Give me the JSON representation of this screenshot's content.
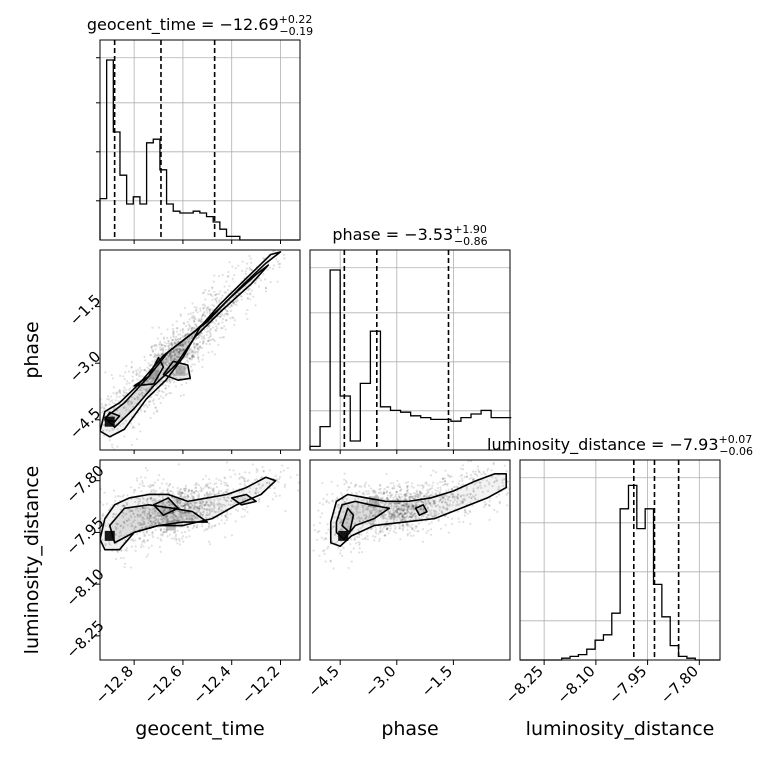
{
  "chart_data": {
    "type": "corner",
    "parameters": [
      {
        "name": "geocent_time",
        "axis_label": "geocent_time",
        "range": [
          -12.94,
          -12.12
        ],
        "ticks": [
          -12.8,
          -12.6,
          -12.4,
          -12.2
        ],
        "tick_labels": [
          "−12.8",
          "−12.6",
          "−12.4",
          "−12.2"
        ],
        "title": {
          "prefix": "geocent_time = −12.69",
          "plus": "+0.22",
          "minus": "−0.19"
        },
        "quantiles": [
          -12.88,
          -12.69,
          -12.47
        ],
        "histogram_bin_edges_start": -12.94,
        "histogram_bin_width": 0.0273,
        "histogram_counts": [
          0.23,
          1.0,
          0.6,
          0.36,
          0.2,
          0.24,
          0.2,
          0.54,
          0.56,
          0.39,
          0.2,
          0.16,
          0.15,
          0.15,
          0.16,
          0.15,
          0.13,
          0.1,
          0.06,
          0.02,
          0.02,
          0.0,
          0.0,
          0.0,
          0.0,
          0.0,
          0.0,
          0.0,
          0.0,
          0.0
        ]
      },
      {
        "name": "phase",
        "axis_label": "phase",
        "range": [
          -5.3,
          0.0
        ],
        "ticks": [
          -4.5,
          -3.0,
          -1.5
        ],
        "tick_labels": [
          "−4.5",
          "−3.0",
          "−1.5"
        ],
        "title": {
          "prefix": "phase = −3.53",
          "plus": "+1.90",
          "minus": "−0.86"
        },
        "quantiles": [
          -4.39,
          -3.53,
          -1.63
        ],
        "histogram_bin_edges_start": -5.3,
        "histogram_bin_width": 0.2667,
        "histogram_counts": [
          0.02,
          0.13,
          1.0,
          0.3,
          0.05,
          0.37,
          0.66,
          0.24,
          0.22,
          0.21,
          0.19,
          0.18,
          0.17,
          0.17,
          0.16,
          0.18,
          0.2,
          0.22,
          0.18,
          0.18
        ]
      },
      {
        "name": "luminosity_distance",
        "axis_label": "luminosity_distance",
        "range": [
          -8.32,
          -7.74
        ],
        "ticks": [
          -8.25,
          -8.1,
          -7.95,
          -7.8
        ],
        "tick_labels": [
          "−8.25",
          "−8.10",
          "−7.95",
          "−7.80"
        ],
        "title": {
          "prefix": "luminosity_distance = −7.93",
          "plus": "+0.07",
          "minus": "−0.06"
        },
        "quantiles": [
          -7.99,
          -7.93,
          -7.86
        ],
        "histogram_bin_edges_start": -8.32,
        "histogram_bin_width": 0.0242,
        "histogram_counts": [
          0.0,
          0.0,
          0.0,
          0.0,
          0.0,
          0.01,
          0.02,
          0.03,
          0.06,
          0.11,
          0.14,
          0.26,
          0.84,
          0.97,
          0.73,
          0.84,
          0.42,
          0.24,
          0.08,
          0.02,
          0.01,
          0.0,
          0.0,
          0.0
        ]
      }
    ],
    "pairs": [
      {
        "x": "geocent_time",
        "y": "phase",
        "contours": [
          [
            [
              -12.92,
              -4.28
            ],
            [
              -12.86,
              -4.05
            ],
            [
              -12.78,
              -3.55
            ],
            [
              -12.68,
              -2.8
            ],
            [
              -12.55,
              -2.15
            ],
            [
              -12.45,
              -1.55
            ],
            [
              -12.35,
              -0.9
            ],
            [
              -12.26,
              -0.35
            ],
            [
              -12.2,
              -0.05
            ],
            [
              -12.24,
              -0.12
            ],
            [
              -12.34,
              -0.75
            ],
            [
              -12.45,
              -1.45
            ],
            [
              -12.53,
              -2.05
            ],
            [
              -12.6,
              -2.85
            ],
            [
              -12.67,
              -3.45
            ],
            [
              -12.75,
              -3.95
            ],
            [
              -12.84,
              -4.75
            ],
            [
              -12.9,
              -4.95
            ],
            [
              -12.94,
              -4.8
            ],
            [
              -12.92,
              -4.28
            ]
          ],
          [
            [
              -12.92,
              -4.45
            ],
            [
              -12.84,
              -4.05
            ],
            [
              -12.74,
              -3.35
            ],
            [
              -12.66,
              -2.7
            ],
            [
              -12.58,
              -2.3
            ],
            [
              -12.5,
              -1.9
            ],
            [
              -12.42,
              -1.35
            ],
            [
              -12.3,
              -0.65
            ],
            [
              -12.25,
              -0.4
            ],
            [
              -12.32,
              -0.9
            ],
            [
              -12.44,
              -1.6
            ],
            [
              -12.55,
              -2.3
            ],
            [
              -12.63,
              -3.05
            ],
            [
              -12.72,
              -3.6
            ],
            [
              -12.8,
              -4.2
            ],
            [
              -12.88,
              -4.7
            ],
            [
              -12.92,
              -4.45
            ]
          ],
          [
            [
              -12.8,
              -3.6
            ],
            [
              -12.74,
              -3.35
            ],
            [
              -12.7,
              -2.85
            ],
            [
              -12.68,
              -3.1
            ],
            [
              -12.72,
              -3.55
            ],
            [
              -12.8,
              -3.6
            ]
          ],
          [
            [
              -12.68,
              -3.3
            ],
            [
              -12.62,
              -3.45
            ],
            [
              -12.57,
              -3.4
            ],
            [
              -12.58,
              -3.05
            ],
            [
              -12.64,
              -2.95
            ],
            [
              -12.68,
              -3.3
            ]
          ],
          [
            [
              -12.92,
              -4.5
            ],
            [
              -12.88,
              -4.55
            ],
            [
              -12.86,
              -4.4
            ],
            [
              -12.9,
              -4.3
            ],
            [
              -12.92,
              -4.5
            ]
          ]
        ],
        "density_peaks": [
          [
            -12.9,
            -4.55
          ],
          [
            -12.61,
            -3.2
          ],
          [
            -12.72,
            -3.3
          ]
        ]
      },
      {
        "x": "geocent_time",
        "y": "luminosity_distance",
        "contours": [
          [
            [
              -12.92,
              -7.91
            ],
            [
              -12.88,
              -7.87
            ],
            [
              -12.82,
              -7.85
            ],
            [
              -12.74,
              -7.84
            ],
            [
              -12.66,
              -7.84
            ],
            [
              -12.58,
              -7.86
            ],
            [
              -12.5,
              -7.85
            ],
            [
              -12.42,
              -7.84
            ],
            [
              -12.34,
              -7.82
            ],
            [
              -12.26,
              -7.79
            ],
            [
              -12.22,
              -7.8
            ],
            [
              -12.28,
              -7.84
            ],
            [
              -12.38,
              -7.87
            ],
            [
              -12.48,
              -7.91
            ],
            [
              -12.6,
              -7.93
            ],
            [
              -12.7,
              -7.93
            ],
            [
              -12.8,
              -7.95
            ],
            [
              -12.86,
              -8.0
            ],
            [
              -12.92,
              -8.0
            ],
            [
              -12.94,
              -7.97
            ],
            [
              -12.92,
              -7.91
            ]
          ],
          [
            [
              -12.9,
              -7.93
            ],
            [
              -12.84,
              -7.88
            ],
            [
              -12.74,
              -7.87
            ],
            [
              -12.64,
              -7.88
            ],
            [
              -12.56,
              -7.89
            ],
            [
              -12.5,
              -7.92
            ],
            [
              -12.6,
              -7.92
            ],
            [
              -12.7,
              -7.93
            ],
            [
              -12.8,
              -7.95
            ],
            [
              -12.88,
              -7.98
            ],
            [
              -12.9,
              -7.93
            ]
          ],
          [
            [
              -12.72,
              -7.87
            ],
            [
              -12.66,
              -7.85
            ],
            [
              -12.62,
              -7.88
            ],
            [
              -12.68,
              -7.9
            ],
            [
              -12.72,
              -7.87
            ]
          ],
          [
            [
              -12.4,
              -7.85
            ],
            [
              -12.34,
              -7.84
            ],
            [
              -12.3,
              -7.86
            ],
            [
              -12.36,
              -7.87
            ],
            [
              -12.4,
              -7.85
            ]
          ]
        ],
        "density_peaks": [
          [
            -12.9,
            -7.96
          ],
          [
            -12.65,
            -7.93
          ]
        ]
      },
      {
        "x": "phase",
        "y": "luminosity_distance",
        "contours": [
          [
            [
              -4.75,
              -7.92
            ],
            [
              -4.6,
              -7.86
            ],
            [
              -4.3,
              -7.84
            ],
            [
              -3.8,
              -7.85
            ],
            [
              -3.3,
              -7.86
            ],
            [
              -2.7,
              -7.86
            ],
            [
              -2.1,
              -7.85
            ],
            [
              -1.5,
              -7.83
            ],
            [
              -0.9,
              -7.8
            ],
            [
              -0.4,
              -7.78
            ],
            [
              -0.1,
              -7.78
            ],
            [
              -0.1,
              -7.82
            ],
            [
              -0.6,
              -7.85
            ],
            [
              -1.3,
              -7.88
            ],
            [
              -2.0,
              -7.91
            ],
            [
              -2.8,
              -7.92
            ],
            [
              -3.6,
              -7.93
            ],
            [
              -4.2,
              -7.96
            ],
            [
              -4.5,
              -7.99
            ],
            [
              -4.75,
              -7.98
            ],
            [
              -4.75,
              -7.92
            ]
          ],
          [
            [
              -4.6,
              -7.92
            ],
            [
              -4.45,
              -7.87
            ],
            [
              -4.1,
              -7.86
            ],
            [
              -3.7,
              -7.87
            ],
            [
              -3.2,
              -7.88
            ],
            [
              -3.6,
              -7.91
            ],
            [
              -4.1,
              -7.93
            ],
            [
              -4.4,
              -7.97
            ],
            [
              -4.6,
              -7.95
            ],
            [
              -4.6,
              -7.92
            ]
          ],
          [
            [
              -4.45,
              -7.93
            ],
            [
              -4.3,
              -7.88
            ],
            [
              -4.15,
              -7.9
            ],
            [
              -4.25,
              -7.95
            ],
            [
              -4.45,
              -7.93
            ]
          ],
          [
            [
              -2.5,
              -7.88
            ],
            [
              -2.3,
              -7.87
            ],
            [
              -2.2,
              -7.89
            ],
            [
              -2.4,
              -7.9
            ],
            [
              -2.5,
              -7.88
            ]
          ]
        ],
        "density_peaks": [
          [
            -4.42,
            -7.96
          ],
          [
            -3.6,
            -7.86
          ]
        ]
      }
    ]
  }
}
